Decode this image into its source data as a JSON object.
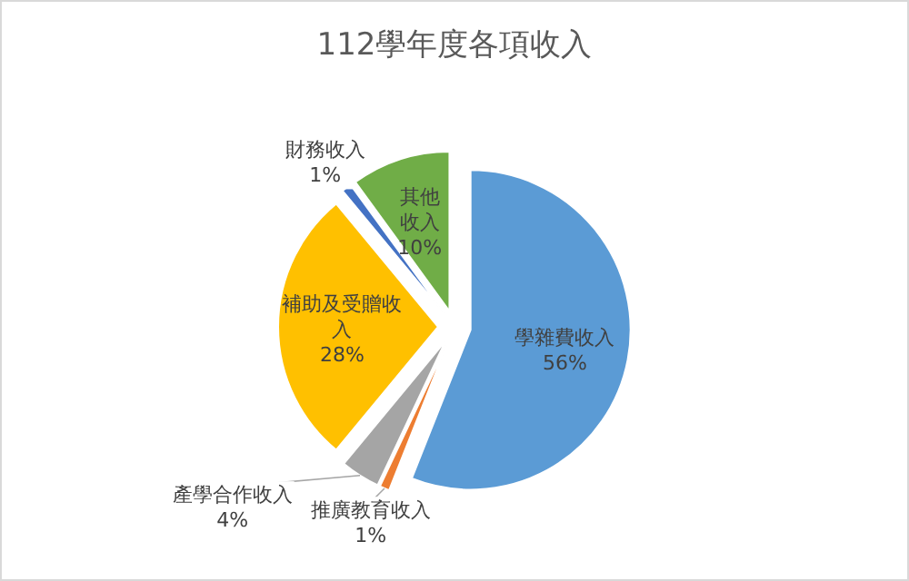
{
  "chart_data": {
    "type": "pie",
    "title": "112學年度各項收入",
    "categories": [
      "學雜費收入",
      "推廣教育收入",
      "產學合作收入",
      "補助及受贈收入",
      "財務收入",
      "其他收入"
    ],
    "values": [
      56,
      1,
      4,
      28,
      1,
      10
    ],
    "colors": [
      "#5b9bd5",
      "#ed7d31",
      "#a5a5a5",
      "#ffc000",
      "#4472c4",
      "#70ad47"
    ],
    "value_labels": [
      "56%",
      "1%",
      "4%",
      "28%",
      "1%",
      "10%"
    ]
  }
}
